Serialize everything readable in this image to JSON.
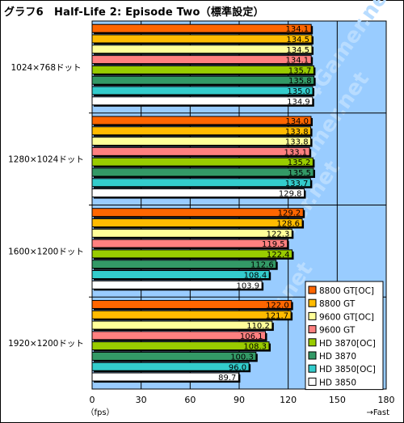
{
  "chart_data": {
    "type": "bar",
    "orientation": "horizontal",
    "title": "グラフ6　Half-Life 2: Episode Two（標準設定）",
    "categories": [
      "1024×768ドット",
      "1280×1024ドット",
      "1600×1200ドット",
      "1920×1200ドット"
    ],
    "series": [
      {
        "name": "8800 GT[OC]",
        "color": "#ff6600",
        "values": [
          134.1,
          134.0,
          129.2,
          122.0
        ]
      },
      {
        "name": "8800 GT",
        "color": "#ffbb00",
        "values": [
          134.5,
          133.8,
          128.6,
          121.7
        ]
      },
      {
        "name": "9600 GT[OC]",
        "color": "#ffff99",
        "values": [
          134.5,
          133.8,
          122.3,
          110.2
        ]
      },
      {
        "name": "9600 GT",
        "color": "#ff8080",
        "values": [
          134.1,
          133.1,
          119.5,
          106.1
        ]
      },
      {
        "name": "HD 3870[OC]",
        "color": "#99cc00",
        "values": [
          135.7,
          135.2,
          122.4,
          108.3
        ]
      },
      {
        "name": "HD 3870",
        "color": "#339966",
        "values": [
          135.8,
          135.5,
          112.6,
          100.3
        ]
      },
      {
        "name": "HD 3850[OC]",
        "color": "#33cccc",
        "values": [
          135.0,
          133.7,
          108.4,
          96.0
        ]
      },
      {
        "name": "HD 3850",
        "color": "#ffffff",
        "values": [
          134.9,
          129.8,
          103.9,
          89.7
        ]
      }
    ],
    "xlim": [
      0,
      180
    ],
    "xticks": [
      0,
      30,
      60,
      90,
      120,
      150,
      180
    ],
    "xunit": "（fps）",
    "direction_label": "→Fast",
    "grid": true,
    "legend_position": "bottom-right",
    "watermark": "4Gamer.net",
    "plot_background": "#99ccff"
  }
}
